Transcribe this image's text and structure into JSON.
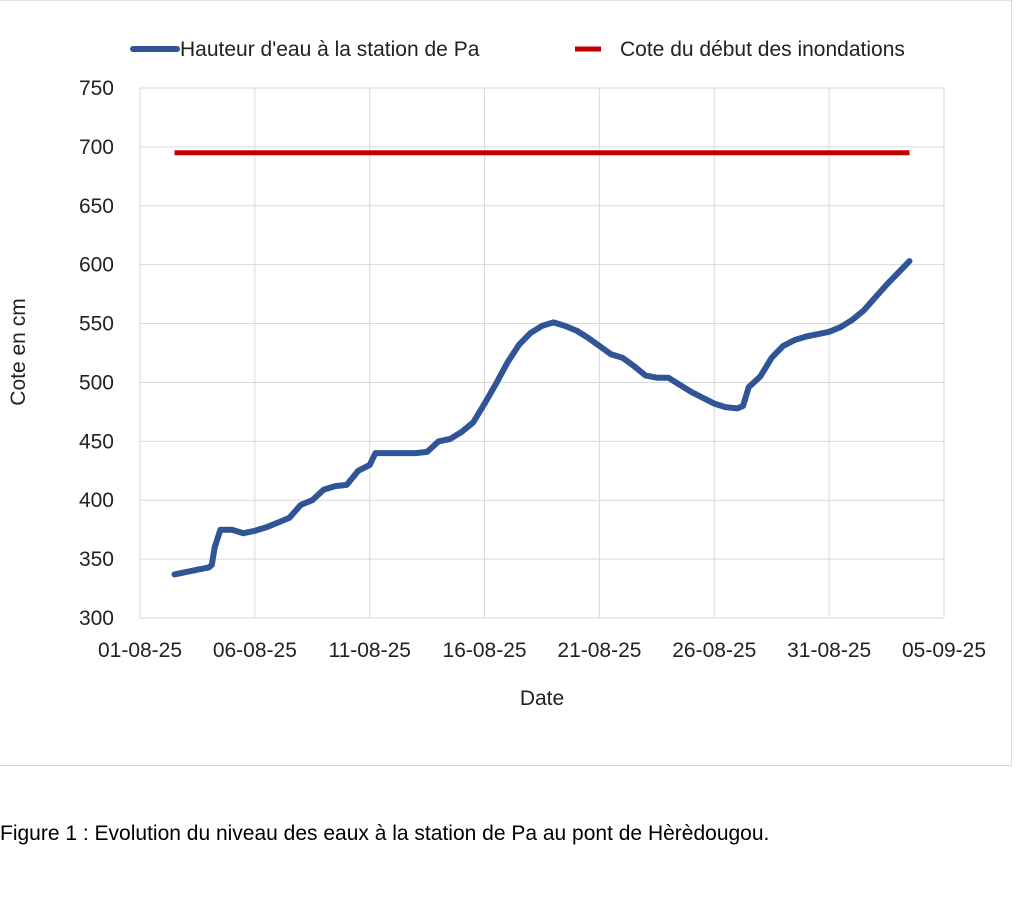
{
  "chart_data": {
    "type": "line",
    "xlabel": "Date",
    "ylabel": "Cote  en cm",
    "ylim": [
      300,
      750
    ],
    "y_ticks": [
      300,
      350,
      400,
      450,
      500,
      550,
      600,
      650,
      700,
      750
    ],
    "xlim": [
      "2025-08-01",
      "2025-09-05"
    ],
    "x_ticks": [
      "2025-08-01",
      "2025-08-06",
      "2025-08-11",
      "2025-08-16",
      "2025-08-21",
      "2025-08-26",
      "2025-08-31",
      "2025-09-05"
    ],
    "x_tick_labels": [
      "01-08-25",
      "06-08-25",
      "11-08-25",
      "16-08-25",
      "21-08-25",
      "26-08-25",
      "31-08-25",
      "05-09-25"
    ],
    "grid": true,
    "legend_position": "top",
    "series": [
      {
        "name": "Hauteur d'eau à la station de Pa",
        "color": "#2f5597",
        "points": [
          [
            "2025-08-02T12:00",
            337
          ],
          [
            "2025-08-03T00:00",
            339
          ],
          [
            "2025-08-03T12:00",
            341
          ],
          [
            "2025-08-04T00:00",
            343
          ],
          [
            "2025-08-04T03:00",
            345
          ],
          [
            "2025-08-04T06:00",
            360
          ],
          [
            "2025-08-04T12:00",
            375
          ],
          [
            "2025-08-05T00:00",
            375
          ],
          [
            "2025-08-05T12:00",
            372
          ],
          [
            "2025-08-06T00:00",
            374
          ],
          [
            "2025-08-06T12:00",
            377
          ],
          [
            "2025-08-07T00:00",
            381
          ],
          [
            "2025-08-07T12:00",
            385
          ],
          [
            "2025-08-08T00:00",
            396
          ],
          [
            "2025-08-08T12:00",
            400
          ],
          [
            "2025-08-09T00:00",
            409
          ],
          [
            "2025-08-09T12:00",
            412
          ],
          [
            "2025-08-10T00:00",
            413
          ],
          [
            "2025-08-10T12:00",
            425
          ],
          [
            "2025-08-11T00:00",
            430
          ],
          [
            "2025-08-11T06:00",
            440
          ],
          [
            "2025-08-12T00:00",
            440
          ],
          [
            "2025-08-13T00:00",
            440
          ],
          [
            "2025-08-13T12:00",
            441
          ],
          [
            "2025-08-14T00:00",
            450
          ],
          [
            "2025-08-14T12:00",
            452
          ],
          [
            "2025-08-15T00:00",
            458
          ],
          [
            "2025-08-15T12:00",
            466
          ],
          [
            "2025-08-16T00:00",
            482
          ],
          [
            "2025-08-16T12:00",
            499
          ],
          [
            "2025-08-17T00:00",
            517
          ],
          [
            "2025-08-17T12:00",
            532
          ],
          [
            "2025-08-18T00:00",
            542
          ],
          [
            "2025-08-18T12:00",
            548
          ],
          [
            "2025-08-19T00:00",
            551
          ],
          [
            "2025-08-19T12:00",
            548
          ],
          [
            "2025-08-20T00:00",
            544
          ],
          [
            "2025-08-20T12:00",
            538
          ],
          [
            "2025-08-21T00:00",
            531
          ],
          [
            "2025-08-21T12:00",
            524
          ],
          [
            "2025-08-22T00:00",
            521
          ],
          [
            "2025-08-22T12:00",
            514
          ],
          [
            "2025-08-23T00:00",
            506
          ],
          [
            "2025-08-23T12:00",
            504
          ],
          [
            "2025-08-24T00:00",
            504
          ],
          [
            "2025-08-24T12:00",
            498
          ],
          [
            "2025-08-25T00:00",
            492
          ],
          [
            "2025-08-25T12:00",
            487
          ],
          [
            "2025-08-26T00:00",
            482
          ],
          [
            "2025-08-26T12:00",
            479
          ],
          [
            "2025-08-27T00:00",
            478
          ],
          [
            "2025-08-27T06:00",
            480
          ],
          [
            "2025-08-27T12:00",
            496
          ],
          [
            "2025-08-28T00:00",
            505
          ],
          [
            "2025-08-28T12:00",
            521
          ],
          [
            "2025-08-29T00:00",
            531
          ],
          [
            "2025-08-29T12:00",
            536
          ],
          [
            "2025-08-30T00:00",
            539
          ],
          [
            "2025-08-30T12:00",
            541
          ],
          [
            "2025-08-31T00:00",
            543
          ],
          [
            "2025-08-31T12:00",
            547
          ],
          [
            "2025-09-01T00:00",
            553
          ],
          [
            "2025-09-01T12:00",
            561
          ],
          [
            "2025-09-02T00:00",
            572
          ],
          [
            "2025-09-02T12:00",
            583
          ],
          [
            "2025-09-03T00:00",
            593
          ],
          [
            "2025-09-03T12:00",
            603
          ]
        ]
      },
      {
        "name": "Cote du début des inondations",
        "color": "#c00000",
        "points": [
          [
            "2025-08-02T12:00",
            695
          ],
          [
            "2025-09-03T12:00",
            695
          ]
        ]
      }
    ]
  },
  "caption": "Figure 1 : Evolution du niveau des eaux à la station de Pa au pont de Hèrèdougou."
}
